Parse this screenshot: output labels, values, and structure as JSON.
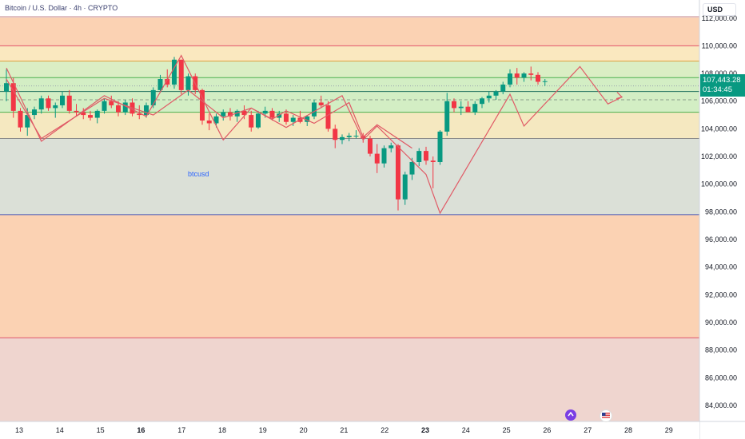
{
  "header": {
    "title": "Bitcoin / U.S. Dollar · 4h · CRYPTO",
    "currency": "USD"
  },
  "price": {
    "last": "107,443.28",
    "countdown": "01:34:45"
  },
  "annotation": "btcusd",
  "events": {
    "crypto_icon": "crypto-event-icon",
    "flag_icon": "us-flag-icon"
  },
  "colors": {
    "up": "#089981",
    "down": "#f23645",
    "zigzag": "#e05a66",
    "zone_orange": "#fbd2b3",
    "zone_yellow": "#fae8bf",
    "zone_green": "#d3eec4",
    "zone_gray": "#dbe0d7",
    "zone_pink": "#efd5cf"
  },
  "chart_data": {
    "type": "candlestick",
    "symbol": "BTCUSD",
    "interval": "4h",
    "y_axis": {
      "ticks": [
        84000,
        86000,
        88000,
        90000,
        92000,
        94000,
        96000,
        98000,
        100000,
        102000,
        104000,
        106000,
        108000,
        110000,
        112000
      ],
      "tick_labels": [
        "84,000.00",
        "86,000.00",
        "88,000.00",
        "90,000.00",
        "92,000.00",
        "94,000.00",
        "96,000.00",
        "98,000.00",
        "100,000.00",
        "102,000.00",
        "104,000.00",
        "106,000.00",
        "108,000.00",
        "110,000.00",
        "112,000.00"
      ],
      "range": [
        82800,
        113000
      ]
    },
    "x_axis": {
      "labels": [
        {
          "text": "13",
          "bold": false
        },
        {
          "text": "14",
          "bold": false
        },
        {
          "text": "15",
          "bold": false
        },
        {
          "text": "16",
          "bold": true
        },
        {
          "text": "17",
          "bold": false
        },
        {
          "text": "18",
          "bold": false
        },
        {
          "text": "19",
          "bold": false
        },
        {
          "text": "20",
          "bold": false
        },
        {
          "text": "21",
          "bold": false
        },
        {
          "text": "22",
          "bold": false
        },
        {
          "text": "23",
          "bold": true
        },
        {
          "text": "24",
          "bold": false
        },
        {
          "text": "25",
          "bold": false
        },
        {
          "text": "26",
          "bold": false
        },
        {
          "text": "27",
          "bold": false
        },
        {
          "text": "28",
          "bold": false
        },
        {
          "text": "29",
          "bold": false
        }
      ]
    },
    "zones": [
      {
        "from": 110000,
        "to": 113000,
        "color": "#fbd2b3"
      },
      {
        "from": 108900,
        "to": 110000,
        "color": "#fae8bf"
      },
      {
        "from": 107700,
        "to": 108900,
        "color": "#dbeec4"
      },
      {
        "from": 105200,
        "to": 107700,
        "color": "#d3eec4"
      },
      {
        "from": 103300,
        "to": 105200,
        "color": "#f5e8c0"
      },
      {
        "from": 97800,
        "to": 103300,
        "color": "#dbe0d7"
      },
      {
        "from": 88900,
        "to": 97800,
        "color": "#fbd2b3"
      },
      {
        "from": 82800,
        "to": 88900,
        "color": "#efd5cf"
      }
    ],
    "lines": [
      {
        "price": 112100,
        "color": "#c7b0d6",
        "style": "solid"
      },
      {
        "price": 110000,
        "color": "#e0546a",
        "style": "solid"
      },
      {
        "price": 108900,
        "color": "#e0a040",
        "style": "solid"
      },
      {
        "price": 107700,
        "color": "#4caf50",
        "style": "solid"
      },
      {
        "price": 107100,
        "color": "#9aa2ae",
        "style": "dotted"
      },
      {
        "price": 106700,
        "color": "#1c6e5e",
        "style": "solid"
      },
      {
        "price": 106100,
        "color": "#8a9d8a",
        "style": "dashed"
      },
      {
        "price": 105200,
        "color": "#4caf50",
        "style": "solid"
      },
      {
        "price": 103300,
        "color": "#8a8a8a",
        "style": "solid"
      },
      {
        "price": 97800,
        "color": "#3f51b5",
        "style": "solid"
      },
      {
        "price": 88900,
        "color": "#e0546a",
        "style": "solid"
      }
    ],
    "candles": [
      [
        106700,
        108300,
        106000,
        107300
      ],
      [
        107300,
        107700,
        104800,
        105300
      ],
      [
        105300,
        105500,
        103800,
        104100
      ],
      [
        104100,
        105500,
        103500,
        105000
      ],
      [
        105000,
        105600,
        104700,
        105400
      ],
      [
        105400,
        106400,
        105100,
        106200
      ],
      [
        106200,
        106400,
        105300,
        105500
      ],
      [
        105500,
        105900,
        104800,
        105700
      ],
      [
        105700,
        106700,
        105500,
        106400
      ],
      [
        106400,
        106800,
        105100,
        105300
      ],
      [
        105300,
        105800,
        104900,
        105200
      ],
      [
        105200,
        105500,
        104700,
        105000
      ],
      [
        105000,
        105300,
        104600,
        104800
      ],
      [
        104800,
        105400,
        104400,
        105300
      ],
      [
        105300,
        106200,
        105100,
        106000
      ],
      [
        106000,
        106400,
        105500,
        105700
      ],
      [
        105700,
        106000,
        104900,
        105200
      ],
      [
        105200,
        106100,
        105000,
        105900
      ],
      [
        105900,
        106200,
        104900,
        105100
      ],
      [
        105100,
        105700,
        104700,
        105000
      ],
      [
        105000,
        105900,
        104800,
        105700
      ],
      [
        105700,
        107000,
        105500,
        106800
      ],
      [
        106800,
        107900,
        106600,
        107600
      ],
      [
        107600,
        108300,
        107000,
        107200
      ],
      [
        107200,
        109200,
        106900,
        109000
      ],
      [
        109000,
        109000,
        106500,
        106800
      ],
      [
        106800,
        108000,
        106400,
        107800
      ],
      [
        107800,
        108000,
        106500,
        106800
      ],
      [
        106800,
        106900,
        104300,
        104600
      ],
      [
        104600,
        105100,
        103900,
        104400
      ],
      [
        104400,
        105100,
        104100,
        104900
      ],
      [
        104900,
        105400,
        104600,
        105200
      ],
      [
        105200,
        105500,
        104600,
        104900
      ],
      [
        104900,
        105400,
        104500,
        105300
      ],
      [
        105300,
        105700,
        104700,
        105000
      ],
      [
        105000,
        105300,
        103800,
        104100
      ],
      [
        104100,
        105300,
        104000,
        105100
      ],
      [
        105100,
        105600,
        104800,
        105300
      ],
      [
        105300,
        105500,
        104600,
        104800
      ],
      [
        104800,
        105300,
        104500,
        105100
      ],
      [
        105100,
        105400,
        104300,
        104500
      ],
      [
        104500,
        105000,
        104200,
        104800
      ],
      [
        104800,
        105300,
        104400,
        104500
      ],
      [
        104500,
        105000,
        104200,
        104900
      ],
      [
        104900,
        106100,
        104700,
        105900
      ],
      [
        105900,
        106400,
        105500,
        105700
      ],
      [
        105700,
        106000,
        103800,
        104000
      ],
      [
        104000,
        104300,
        102600,
        103200
      ],
      [
        103200,
        103600,
        102900,
        103400
      ],
      [
        103400,
        103700,
        103100,
        103500
      ],
      [
        103500,
        103900,
        103300,
        103500
      ],
      [
        103500,
        103700,
        103000,
        103300
      ],
      [
        103300,
        103500,
        102000,
        102200
      ],
      [
        102200,
        102900,
        100800,
        101500
      ],
      [
        101500,
        102800,
        101200,
        102600
      ],
      [
        102600,
        103000,
        102300,
        102800
      ],
      [
        102800,
        102900,
        98100,
        98900
      ],
      [
        98900,
        100900,
        98500,
        100700
      ],
      [
        100700,
        101900,
        100300,
        101600
      ],
      [
        101600,
        102600,
        101300,
        102400
      ],
      [
        102400,
        102700,
        101400,
        101700
      ],
      [
        101700,
        102000,
        99700,
        101600
      ],
      [
        101600,
        103900,
        101400,
        103800
      ],
      [
        103800,
        106600,
        103500,
        106000
      ],
      [
        106000,
        106200,
        105200,
        105500
      ],
      [
        105500,
        106000,
        105000,
        105600
      ],
      [
        105600,
        106000,
        105200,
        105200
      ],
      [
        105200,
        106000,
        105000,
        105800
      ],
      [
        105800,
        106300,
        105500,
        106200
      ],
      [
        106200,
        106700,
        105900,
        106400
      ],
      [
        106400,
        106800,
        106100,
        106700
      ],
      [
        106700,
        107400,
        106500,
        107200
      ],
      [
        107200,
        108300,
        107000,
        108000
      ],
      [
        108000,
        108400,
        107200,
        107700
      ],
      [
        107700,
        108100,
        107400,
        108000
      ],
      [
        108000,
        108500,
        107500,
        107900
      ],
      [
        107900,
        108100,
        107200,
        107400
      ],
      [
        107400,
        107600,
        107100,
        107443
      ]
    ],
    "zigzag_lines": [
      [
        {
          "i": 0,
          "p": 107600
        },
        {
          "i": 5,
          "p": 103300
        },
        {
          "i": 14,
          "p": 106200
        },
        {
          "i": 21,
          "p": 105000
        },
        {
          "i": 26,
          "p": 106800
        },
        {
          "i": 31,
          "p": 104800
        },
        {
          "i": 35,
          "p": 105500
        },
        {
          "i": 38,
          "p": 104700
        },
        {
          "i": 40,
          "p": 105300
        },
        {
          "i": 44,
          "p": 104400
        },
        {
          "i": 49,
          "p": 105900
        },
        {
          "i": 51,
          "p": 103400
        },
        {
          "i": 53,
          "p": 104300
        },
        {
          "i": 58,
          "p": 102600
        }
      ],
      [
        {
          "i": 0,
          "p": 108400
        },
        {
          "i": 5,
          "p": 103100
        },
        {
          "i": 14,
          "p": 106400
        },
        {
          "i": 20,
          "p": 104900
        },
        {
          "i": 25,
          "p": 109300
        },
        {
          "i": 31,
          "p": 103200
        },
        {
          "i": 35,
          "p": 105500
        },
        {
          "i": 40,
          "p": 104100
        },
        {
          "i": 48,
          "p": 106400
        },
        {
          "i": 51,
          "p": 103200
        },
        {
          "i": 53,
          "p": 104200
        },
        {
          "i": 60,
          "p": 100700
        },
        {
          "i": 62,
          "p": 97900
        },
        {
          "i": 72,
          "p": 106500
        },
        {
          "i": 74,
          "p": 104200
        },
        {
          "i": 82,
          "p": 108500
        },
        {
          "i": 86,
          "p": 105800
        },
        {
          "i": 88,
          "p": 106300
        }
      ]
    ],
    "zigzag_arrows": [
      {
        "i": 88,
        "p": 106300,
        "dir": "up"
      }
    ],
    "current_price": 107443.28
  }
}
